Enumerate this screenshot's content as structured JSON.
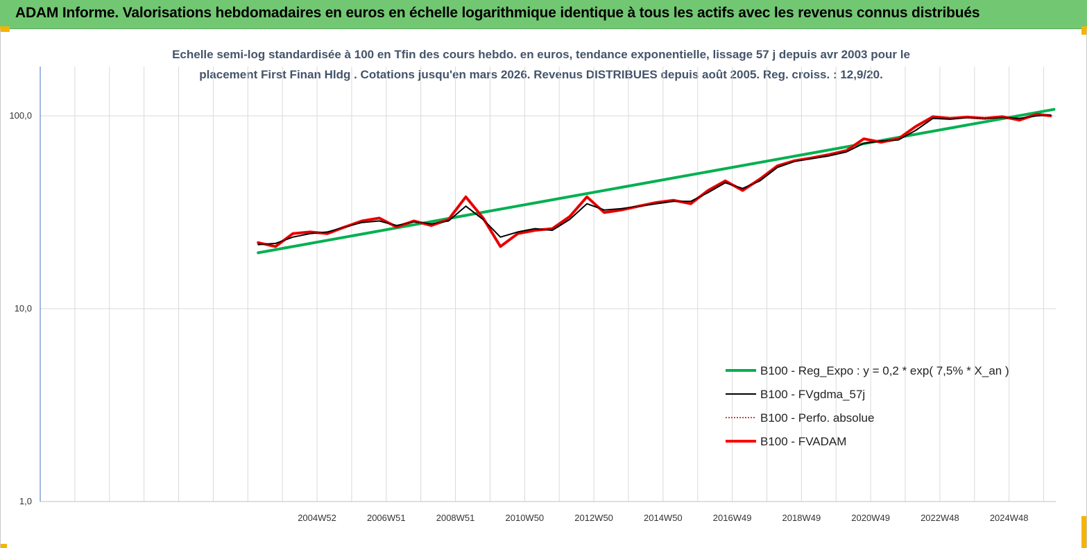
{
  "banner": {
    "title": "ADAM Informe. Valorisations hebdomadaires en euros en échelle logarithmique identique à tous les actifs avec les revenus connus distribués"
  },
  "chart_data": {
    "type": "line",
    "title_line1": "Echelle semi-log standardisée à 100 en Tfin des cours hebdo. en euros, tendance exponentielle, lissage 57 j depuis avr 2003 pour le",
    "title_line2": "placement First Finan Hldg . Cotations jusqu'en mars 2026. Revenus DISTRIBUES depuis août 2005. Reg. croiss. : 12,9/20.",
    "y_scale": "log",
    "ylim": [
      1,
      180
    ],
    "y_ticks": [
      {
        "value": 1,
        "label": "1,0"
      },
      {
        "value": 10,
        "label": "10,0"
      },
      {
        "value": 100,
        "label": "100,0"
      }
    ],
    "x_ticks": [
      "2004W52",
      "2006W51",
      "2008W51",
      "2010W50",
      "2012W50",
      "2014W50",
      "2016W49",
      "2018W49",
      "2020W49",
      "2022W48",
      "2024W48"
    ],
    "x_tick_years": [
      2005.0,
      2007.0,
      2009.0,
      2011.0,
      2013.0,
      2015.0,
      2017.0,
      2019.0,
      2021.0,
      2023.0,
      2025.0
    ],
    "x_range_years": [
      1997.0,
      2026.35
    ],
    "grid": true,
    "legend_position": "bottom-right",
    "series": [
      {
        "name": "B100 - Reg_Expo : y = 0,2 * exp( 7,5% *  X_an )",
        "color": "#00b050",
        "style": "solid-thick",
        "x": [
          2003.3,
          2026.3
        ],
        "y": [
          19.5,
          108
        ]
      },
      {
        "name": "B100 - FVgdma_57j",
        "color": "#000000",
        "style": "solid",
        "x": [
          2003.3,
          2003.8,
          2004.3,
          2004.8,
          2005.3,
          2005.8,
          2006.3,
          2006.8,
          2007.3,
          2007.8,
          2008.3,
          2008.8,
          2009.3,
          2009.8,
          2010.3,
          2010.8,
          2011.3,
          2011.8,
          2012.3,
          2012.8,
          2013.3,
          2013.8,
          2014.3,
          2014.8,
          2015.3,
          2015.8,
          2016.3,
          2016.8,
          2017.3,
          2017.8,
          2018.3,
          2018.8,
          2019.3,
          2019.8,
          2020.3,
          2020.8,
          2021.3,
          2021.8,
          2022.3,
          2022.8,
          2023.3,
          2023.8,
          2024.3,
          2024.8,
          2025.3,
          2025.8,
          2026.2
        ],
        "y": [
          21.5,
          21.8,
          23.5,
          24.5,
          25.0,
          26.5,
          28.0,
          28.5,
          27.0,
          28.2,
          27.5,
          28.5,
          34.0,
          29.0,
          23.5,
          25.0,
          26.0,
          25.5,
          29.0,
          35.0,
          32.5,
          33.0,
          34.0,
          35.0,
          36.0,
          36.0,
          40.0,
          45.0,
          42.0,
          46.0,
          54.0,
          58.0,
          60.0,
          62.0,
          65.0,
          72.0,
          74.0,
          75.0,
          84.0,
          97.0,
          96.0,
          98.0,
          97.0,
          98.0,
          97.0,
          100.0,
          101.0
        ]
      },
      {
        "name": "B100 - Perfo. absolue",
        "color": "#c00000",
        "style": "dotted",
        "x": [
          2003.3,
          2003.8,
          2004.3,
          2004.8,
          2005.3,
          2005.8,
          2006.3,
          2006.8,
          2007.3,
          2007.8,
          2008.3,
          2008.8,
          2009.3,
          2009.8,
          2010.3,
          2010.8,
          2011.3,
          2011.8,
          2012.3,
          2012.8,
          2013.3,
          2013.8,
          2014.3,
          2014.8,
          2015.3,
          2015.8,
          2016.3,
          2016.8,
          2017.3,
          2017.8,
          2018.3,
          2018.8,
          2019.3,
          2019.8,
          2020.3,
          2020.8,
          2021.3,
          2021.8,
          2022.3,
          2022.8,
          2023.3,
          2023.8,
          2024.3,
          2024.8,
          2025.3,
          2025.8,
          2026.2
        ],
        "y": [
          22.0,
          21.0,
          24.5,
          25.0,
          24.5,
          26.5,
          28.5,
          29.5,
          26.5,
          28.5,
          27.0,
          29.0,
          38.0,
          29.5,
          21.0,
          24.5,
          25.5,
          26.0,
          30.0,
          38.0,
          31.5,
          32.5,
          34.0,
          35.5,
          36.5,
          35.0,
          41.0,
          46.0,
          41.0,
          47.0,
          55.0,
          58.5,
          60.5,
          63.0,
          66.0,
          76.0,
          73.0,
          76.0,
          88.0,
          99.0,
          97.0,
          98.5,
          97.0,
          99.0,
          95.0,
          102.0,
          100.0
        ]
      },
      {
        "name": "B100 - FVADAM",
        "color": "#ff0000",
        "style": "solid-thick",
        "x": [
          2003.3,
          2003.8,
          2004.3,
          2004.8,
          2005.3,
          2005.8,
          2006.3,
          2006.8,
          2007.3,
          2007.8,
          2008.3,
          2008.8,
          2009.3,
          2009.8,
          2010.3,
          2010.8,
          2011.3,
          2011.8,
          2012.3,
          2012.8,
          2013.3,
          2013.8,
          2014.3,
          2014.8,
          2015.3,
          2015.8,
          2016.3,
          2016.8,
          2017.3,
          2017.8,
          2018.3,
          2018.8,
          2019.3,
          2019.8,
          2020.3,
          2020.8,
          2021.3,
          2021.8,
          2022.3,
          2022.8,
          2023.3,
          2023.8,
          2024.3,
          2024.8,
          2025.3,
          2025.8,
          2026.2
        ],
        "y": [
          22.0,
          21.0,
          24.5,
          25.0,
          24.5,
          26.5,
          28.5,
          29.5,
          26.5,
          28.5,
          27.0,
          29.0,
          38.0,
          29.5,
          21.0,
          24.5,
          25.5,
          26.0,
          30.0,
          38.0,
          31.5,
          32.5,
          34.0,
          35.5,
          36.5,
          35.0,
          41.0,
          46.0,
          41.0,
          47.0,
          55.0,
          58.5,
          60.5,
          63.0,
          66.0,
          76.0,
          73.0,
          76.0,
          88.0,
          99.0,
          97.0,
          98.5,
          97.0,
          99.0,
          95.0,
          102.0,
          100.0
        ]
      }
    ]
  }
}
